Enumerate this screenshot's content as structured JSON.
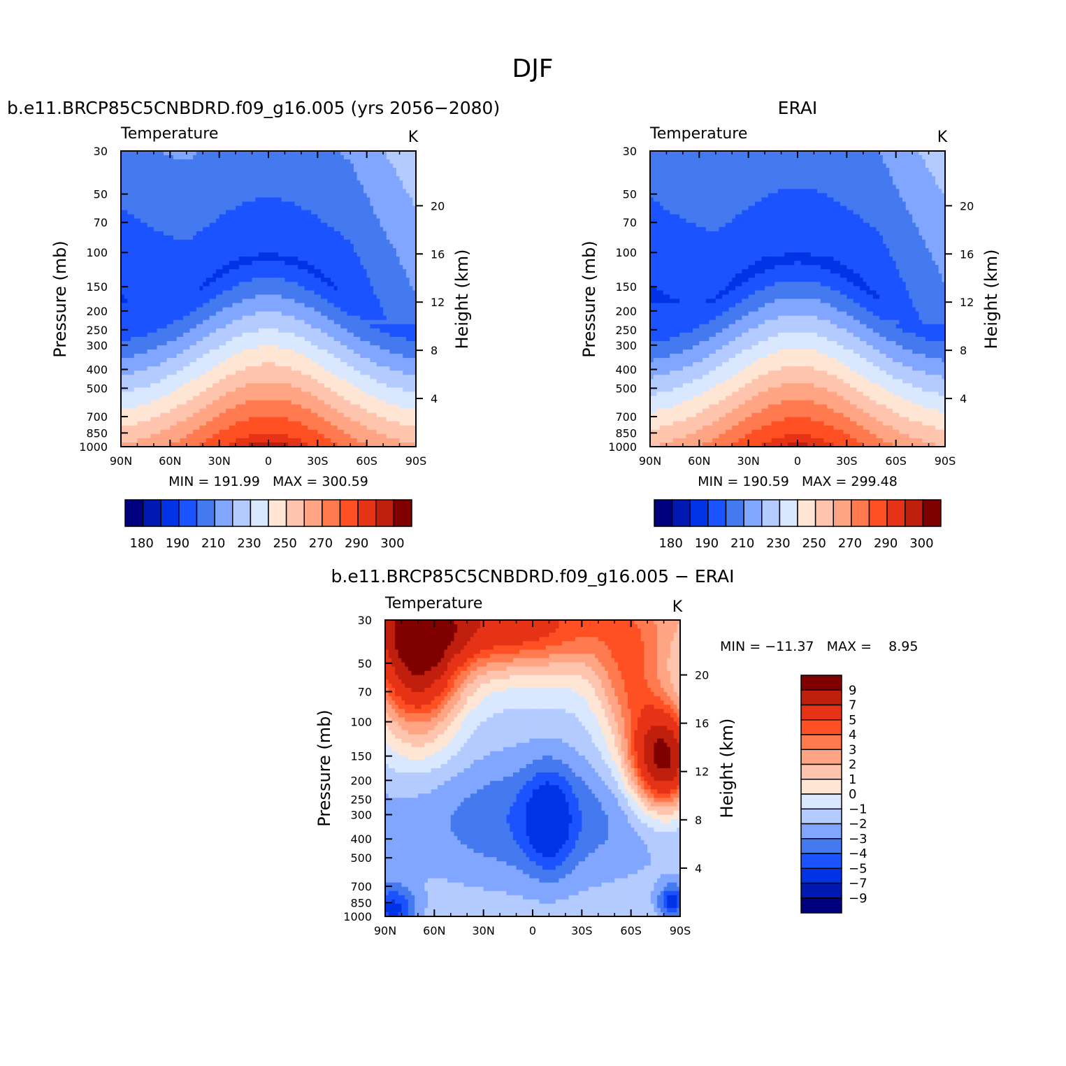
{
  "figure_title": "DJF",
  "chart_data": [
    {
      "type": "contour",
      "title": "b.e11.BRCP85C5CNBDRD.f09_g16.005 (yrs 2056−2080)",
      "variable": "Temperature",
      "units": "K",
      "xlabel": "",
      "ylabel": "Pressure (mb)",
      "y2label": "Height (km)",
      "x_ticks": [
        "90N",
        "60N",
        "30N",
        "0",
        "30S",
        "60S",
        "90S"
      ],
      "y_ticks": [
        "30",
        "50",
        "70",
        "100",
        "150",
        "200",
        "250",
        "300",
        "400",
        "500",
        "700",
        "850",
        "1000"
      ],
      "y2_ticks": [
        "20",
        "16",
        "12",
        "8",
        "4"
      ],
      "stats": "MIN = 191.99   MAX = 300.59",
      "colorbar_labels": [
        "180",
        "190",
        "210",
        "230",
        "250",
        "270",
        "290",
        "300"
      ]
    },
    {
      "type": "contour",
      "title": "ERAI",
      "variable": "Temperature",
      "units": "K",
      "xlabel": "",
      "ylabel": "Pressure (mb)",
      "y2label": "Height (km)",
      "x_ticks": [
        "90N",
        "60N",
        "30N",
        "0",
        "30S",
        "60S",
        "90S"
      ],
      "y_ticks": [
        "30",
        "50",
        "70",
        "100",
        "150",
        "200",
        "250",
        "300",
        "400",
        "500",
        "700",
        "850",
        "1000"
      ],
      "y2_ticks": [
        "20",
        "16",
        "12",
        "8",
        "4"
      ],
      "stats": "MIN = 190.59   MAX = 299.48",
      "colorbar_labels": [
        "180",
        "190",
        "210",
        "230",
        "250",
        "270",
        "290",
        "300"
      ]
    },
    {
      "type": "contour",
      "title": "b.e11.BRCP85C5CNBDRD.f09_g16.005 − ERAI",
      "variable": "Temperature",
      "units": "K",
      "xlabel": "",
      "ylabel": "Pressure (mb)",
      "y2label": "Height (km)",
      "x_ticks": [
        "90N",
        "60N",
        "30N",
        "0",
        "30S",
        "60S",
        "90S"
      ],
      "y_ticks": [
        "30",
        "50",
        "70",
        "100",
        "150",
        "200",
        "250",
        "300",
        "400",
        "500",
        "700",
        "850",
        "1000"
      ],
      "y2_ticks": [
        "20",
        "16",
        "12",
        "8",
        "4"
      ],
      "stats": "MIN = −11.37   MAX =    8.95",
      "colorbar_labels": [
        "9",
        "7",
        "5",
        "4",
        "3",
        "2",
        "1",
        "0",
        "−1",
        "−2",
        "−3",
        "−4",
        "−5",
        "−7",
        "−9"
      ]
    }
  ],
  "colors": {
    "temp_palette": [
      "#00007f",
      "#0019b3",
      "#0033e6",
      "#1a53ff",
      "#4479f0",
      "#80a6ff",
      "#b3cbff",
      "#d9e8ff",
      "#ffe6d4",
      "#ffc4ad",
      "#ffa584",
      "#ff7a4f",
      "#ff5024",
      "#e63316",
      "#bf1f0c",
      "#800000"
    ],
    "diff_palette": [
      "#800000",
      "#bf1f0c",
      "#e63316",
      "#ff5024",
      "#ff7a4f",
      "#ffa584",
      "#ffc4ad",
      "#ffe6d4",
      "#d9e8ff",
      "#b3cbff",
      "#80a6ff",
      "#4479f0",
      "#1a53ff",
      "#0033e6",
      "#0019b3",
      "#00007f"
    ]
  }
}
